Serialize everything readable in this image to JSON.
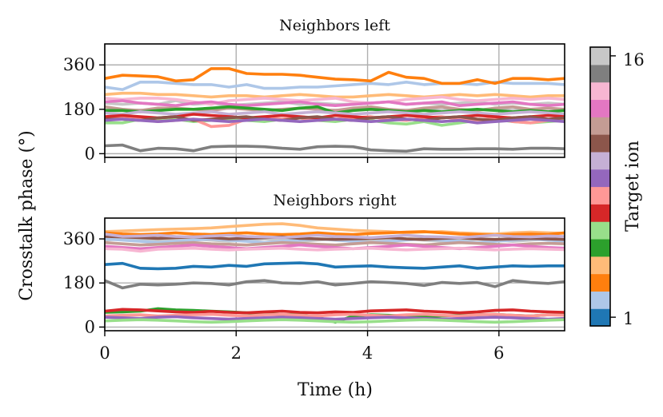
{
  "chart_data": {
    "type": "line",
    "ylabel": "Crosstalk phase (°)",
    "xlabel": "Time (h)",
    "x": [
      0,
      0.27,
      0.54,
      0.81,
      1.08,
      1.35,
      1.62,
      1.89,
      2.16,
      2.43,
      2.7,
      2.97,
      3.24,
      3.51,
      3.78,
      4.05,
      4.32,
      4.59,
      4.86,
      5.13,
      5.4,
      5.67,
      5.94,
      6.21,
      6.48,
      6.75,
      7.0
    ],
    "xlim": [
      0,
      7
    ],
    "xticks": [
      "0",
      "2",
      "4",
      "6"
    ],
    "colorbar": {
      "label": "Target ion",
      "tick_top": "16",
      "tick_bottom": "1"
    },
    "palette": [
      "#1f77b4",
      "#aec7e8",
      "#ff7f0e",
      "#ffbb78",
      "#2ca02c",
      "#98df8a",
      "#d62728",
      "#ff9896",
      "#9467bd",
      "#c5b0d5",
      "#8c564b",
      "#c49c94",
      "#e377c2",
      "#f7b6d2",
      "#7f7f7f",
      "#c7c7c7"
    ],
    "panels": [
      {
        "title": "Neighbors left",
        "ylim": [
          -15,
          445
        ],
        "yticks": [
          "0",
          "180",
          "360"
        ],
        "series": [
          {
            "name": "16",
            "values": [
              205,
              200,
              205,
              200,
              215,
              200,
              205,
              195,
              200,
              205,
              210,
              200,
              205,
              200,
              200,
              205,
              210,
              200,
              205,
              200,
              205,
              210,
              200,
              205,
              200,
              205,
              200
            ]
          },
          {
            "name": "2",
            "values": [
              270,
              260,
              290,
              290,
              285,
              280,
              280,
              270,
              280,
              265,
              265,
              270,
              270,
              275,
              280,
              285,
              280,
              290,
              280,
              285,
              285,
              280,
              290,
              285,
              285,
              285,
              280
            ]
          },
          {
            "name": "4",
            "values": [
              240,
              245,
              245,
              240,
              240,
              235,
              230,
              235,
              235,
              230,
              235,
              240,
              235,
              230,
              230,
              235,
              240,
              235,
              230,
              235,
              240,
              235,
              240,
              235,
              230,
              235,
              235
            ]
          },
          {
            "name": "14",
            "values": [
              225,
              220,
              225,
              225,
              220,
              210,
              200,
              215,
              220,
              225,
              220,
              215,
              220,
              225,
              210,
              205,
              210,
              220,
              225,
              230,
              220,
              215,
              220,
              225,
              220,
              225,
              220
            ]
          },
          {
            "name": "13",
            "values": [
              210,
              215,
              205,
              200,
              195,
              205,
              210,
              200,
              195,
              200,
              205,
              210,
              200,
              195,
              200,
              205,
              210,
              200,
              205,
              210,
              195,
              200,
              205,
              210,
              200,
              195,
              200
            ]
          },
          {
            "name": "12",
            "values": [
              190,
              180,
              175,
              185,
              185,
              180,
              175,
              185,
              180,
              175,
              180,
              185,
              180,
              175,
              185,
              190,
              180,
              175,
              185,
              190,
              180,
              175,
              185,
              190,
              180,
              185,
              180
            ]
          },
          {
            "name": "5",
            "values": [
              175,
              175,
              170,
              175,
              180,
              180,
              185,
              190,
              185,
              180,
              175,
              185,
              190,
              165,
              175,
              180,
              175,
              170,
              175,
              170,
              175,
              180,
              175,
              170,
              175,
              170,
              175
            ]
          },
          {
            "name": "10",
            "values": [
              165,
              160,
              170,
              165,
              160,
              165,
              170,
              160,
              165,
              170,
              160,
              165,
              170,
              165,
              160,
              165,
              170,
              165,
              160,
              165,
              170,
              165,
              160,
              165,
              170,
              165,
              160
            ]
          },
          {
            "name": "6",
            "values": [
              125,
              125,
              140,
              135,
              140,
              130,
              135,
              140,
              135,
              130,
              140,
              145,
              135,
              130,
              140,
              135,
              125,
              120,
              130,
              115,
              125,
              135,
              140,
              130,
              125,
              130,
              135
            ]
          },
          {
            "name": "8",
            "values": [
              145,
              150,
              140,
              130,
              135,
              140,
              110,
              115,
              140,
              145,
              140,
              145,
              135,
              140,
              145,
              150,
              140,
              135,
              145,
              150,
              140,
              135,
              145,
              130,
              125,
              135,
              145
            ]
          },
          {
            "name": "7",
            "values": [
              150,
              155,
              150,
              145,
              150,
              160,
              155,
              150,
              145,
              150,
              155,
              150,
              145,
              155,
              150,
              145,
              150,
              155,
              150,
              145,
              150,
              155,
              150,
              145,
              150,
              155,
              150
            ]
          },
          {
            "name": "11",
            "values": [
              140,
              140,
              135,
              145,
              150,
              135,
              140,
              145,
              150,
              140,
              135,
              145,
              150,
              140,
              135,
              145,
              150,
              140,
              135,
              145,
              150,
              140,
              135,
              145,
              150,
              140,
              145
            ]
          },
          {
            "name": "9",
            "values": [
              135,
              140,
              135,
              130,
              135,
              140,
              135,
              130,
              135,
              140,
              135,
              130,
              135,
              140,
              135,
              130,
              135,
              140,
              135,
              130,
              135,
              125,
              130,
              135,
              140,
              135,
              130
            ]
          },
          {
            "name": "3",
            "values": [
              305,
              318,
              315,
              312,
              295,
              300,
              345,
              345,
              325,
              322,
              322,
              318,
              310,
              302,
              300,
              295,
              330,
              310,
              305,
              285,
              285,
              300,
              285,
              305,
              305,
              300,
              305
            ]
          },
          {
            "name": "15",
            "values": [
              32,
              35,
              12,
              22,
              20,
              12,
              28,
              30,
              30,
              28,
              22,
              18,
              28,
              30,
              28,
              15,
              12,
              10,
              20,
              18,
              18,
              20,
              20,
              18,
              22,
              22,
              20
            ]
          }
        ]
      },
      {
        "title": "Neighbors right",
        "ylim": [
          -15,
          445
        ],
        "yticks": [
          "0",
          "180",
          "360"
        ],
        "series": [
          {
            "name": "16",
            "values": [
              355,
              360,
              355,
              350,
              355,
              360,
              355,
              350,
              355,
              360,
              355,
              350,
              355,
              360,
              355,
              350,
              355,
              360,
              355,
              350,
              355,
              360,
              355,
              350,
              355,
              360,
              355
            ]
          },
          {
            "name": "2",
            "values": [
              360,
              355,
              350,
              345,
              350,
              355,
              360,
              355,
              350,
              345,
              350,
              355,
              360,
              355,
              350,
              345,
              350,
              355,
              360,
              355,
              350,
              345,
              350,
              355,
              360,
              355,
              350
            ]
          },
          {
            "name": "4",
            "values": [
              390,
              392,
              395,
              398,
              400,
              402,
              405,
              410,
              415,
              420,
              422,
              415,
              405,
              400,
              395,
              392,
              390,
              385,
              388,
              390,
              385,
              382,
              380,
              385,
              388,
              385,
              383
            ]
          },
          {
            "name": "3",
            "values": [
              385,
              380,
              378,
              380,
              385,
              380,
              378,
              382,
              385,
              380,
              378,
              380,
              385,
              380,
              378,
              382,
              385,
              388,
              390,
              385,
              380,
              378,
              375,
              378,
              380,
              378,
              385
            ]
          },
          {
            "name": "11",
            "values": [
              370,
              368,
              365,
              362,
              365,
              368,
              365,
              360,
              362,
              365,
              368,
              362,
              360,
              358,
              360,
              362,
              365,
              360,
              358,
              362,
              365,
              360,
              358,
              360,
              362,
              360,
              358
            ]
          },
          {
            "name": "12",
            "values": [
              345,
              340,
              335,
              338,
              342,
              345,
              340,
              338,
              335,
              340,
              345,
              342,
              338,
              335,
              340,
              345,
              342,
              338,
              335,
              340,
              345,
              342,
              338,
              335,
              340,
              342,
              340
            ]
          },
          {
            "name": "10",
            "values": [
              380,
              370,
              372,
              375,
              370,
              368,
              372,
              375,
              370,
              368,
              365,
              370,
              375,
              370,
              368,
              365,
              370,
              375,
              370,
              368,
              365,
              370,
              375,
              370,
              368,
              372,
              370
            ]
          },
          {
            "name": "13",
            "values": [
              330,
              325,
              320,
              325,
              330,
              335,
              330,
              325,
              320,
              325,
              330,
              335,
              330,
              325,
              320,
              325,
              330,
              335,
              330,
              325,
              320,
              325,
              330,
              335,
              330,
              325,
              322
            ]
          },
          {
            "name": "14",
            "values": [
              320,
              318,
              310,
              318,
              320,
              322,
              318,
              315,
              318,
              320,
              322,
              318,
              315,
              318,
              320,
              322,
              318,
              315,
              318,
              320,
              322,
              318,
              315,
              318,
              320,
              318,
              316
            ]
          },
          {
            "name": "1",
            "values": [
              255,
              260,
              240,
              238,
              240,
              248,
              245,
              252,
              248,
              258,
              260,
              262,
              258,
              245,
              248,
              250,
              245,
              242,
              240,
              245,
              250,
              240,
              245,
              250,
              248,
              250,
              250
            ]
          },
          {
            "name": "15",
            "values": [
              190,
              160,
              175,
              172,
              175,
              180,
              178,
              172,
              185,
              190,
              180,
              178,
              185,
              172,
              178,
              185,
              182,
              178,
              170,
              182,
              178,
              182,
              165,
              190,
              182,
              178,
              185
            ]
          },
          {
            "name": "5",
            "values": [
              60,
              62,
              65,
              75,
              70,
              68,
              65,
              62,
              58,
              55,
              50,
              52,
              40,
              20,
              45,
              50,
              48,
              45,
              42,
              45,
              48,
              50,
              52,
              48,
              45,
              50,
              52
            ]
          },
          {
            "name": "7",
            "values": [
              65,
              72,
              70,
              66,
              62,
              60,
              64,
              60,
              58,
              62,
              65,
              60,
              58,
              62,
              60,
              66,
              68,
              70,
              65,
              62,
              58,
              62,
              68,
              70,
              65,
              62,
              60
            ]
          },
          {
            "name": "8",
            "values": [
              45,
              48,
              50,
              45,
              48,
              50,
              52,
              48,
              45,
              50,
              52,
              48,
              45,
              50,
              52,
              48,
              45,
              50,
              52,
              48,
              45,
              50,
              52,
              48,
              45,
              50,
              48
            ]
          },
          {
            "name": "9",
            "values": [
              40,
              38,
              35,
              40,
              42,
              38,
              35,
              32,
              35,
              38,
              40,
              38,
              35,
              32,
              35,
              38,
              40,
              38,
              35,
              32,
              35,
              38,
              40,
              38,
              35,
              32,
              35
            ]
          },
          {
            "name": "6",
            "values": [
              25,
              28,
              30,
              28,
              25,
              22,
              20,
              22,
              25,
              28,
              30,
              28,
              25,
              22,
              20,
              22,
              25,
              28,
              30,
              28,
              25,
              22,
              20,
              22,
              25,
              28,
              30
            ]
          }
        ]
      }
    ]
  }
}
